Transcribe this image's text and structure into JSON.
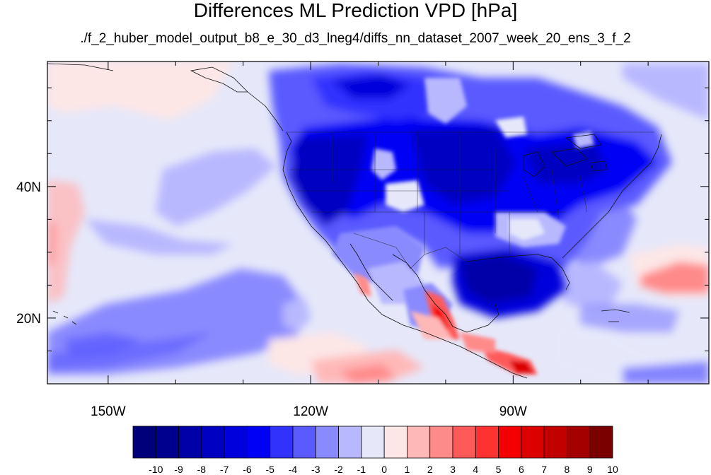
{
  "title": "Differences ML Prediction VPD [hPa]",
  "subtitle": "./f_2_huber_model_output_b8_e_30_d3_lneg4/diffs_nn_dataset_2007_week_20_ens_3_f_2",
  "map": {
    "lon_range": [
      -159,
      -61
    ],
    "lat_range": [
      10,
      59
    ],
    "lon_ticks": [
      {
        "value": -150,
        "label": "150W"
      },
      {
        "value": -120,
        "label": "120W"
      },
      {
        "value": -90,
        "label": "90W"
      }
    ],
    "lat_ticks": [
      {
        "value": 40,
        "label": "40N"
      },
      {
        "value": 20,
        "label": "20N"
      }
    ],
    "ocean_color": "#e6e8fa"
  },
  "colorbar": {
    "labels": [
      "-10",
      "-9",
      "-8",
      "-7",
      "-6",
      "-5",
      "-4",
      "-3",
      "-2",
      "-1",
      "0",
      "1",
      "2",
      "3",
      "4",
      "5",
      "6",
      "7",
      "8",
      "9",
      "10"
    ],
    "colors": [
      "#00007a",
      "#00008f",
      "#0000a8",
      "#0000c2",
      "#0000dc",
      "#0000f5",
      "#3232ff",
      "#5a5aff",
      "#8a8aff",
      "#b8b8ff",
      "#e6e8fa",
      "#fde6e6",
      "#ffb8b8",
      "#ff8a8a",
      "#ff5a5a",
      "#ff3232",
      "#f50000",
      "#dc0000",
      "#c20000",
      "#a40000",
      "#7a0000"
    ]
  }
}
